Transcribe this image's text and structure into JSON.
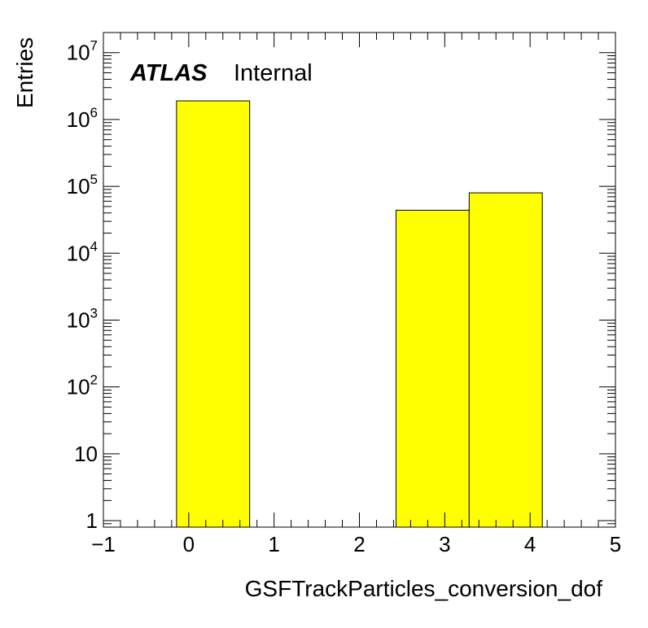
{
  "chart_data": {
    "type": "bar",
    "title": "",
    "xlabel": "GSFTrackParticles_conversion_dof",
    "ylabel": "Entries",
    "xlim": [
      -1,
      5
    ],
    "ylim": [
      0.8,
      20000000
    ],
    "yscale": "log",
    "x_tick_labels": [
      "−1",
      "0",
      "1",
      "2",
      "3",
      "4",
      "5"
    ],
    "y_tick_labels": [
      {
        "base": "1",
        "exp": ""
      },
      {
        "base": "10",
        "exp": ""
      },
      {
        "base": "10",
        "exp": "2"
      },
      {
        "base": "10",
        "exp": "3"
      },
      {
        "base": "10",
        "exp": "4"
      },
      {
        "base": "10",
        "exp": "5"
      },
      {
        "base": "10",
        "exp": "6"
      },
      {
        "base": "10",
        "exp": "7"
      }
    ],
    "bins": [
      {
        "x_low": -0.143,
        "x_high": 0.714,
        "value": 1900000
      },
      {
        "x_low": 2.429,
        "x_high": 3.286,
        "value": 44000
      },
      {
        "x_low": 3.286,
        "x_high": 4.143,
        "value": 80000
      }
    ],
    "fill_color": "#ffff00",
    "edge_color": "#000000",
    "grid": false,
    "legend": "none"
  },
  "label": {
    "experiment": "ATLAS",
    "status": "Internal"
  }
}
